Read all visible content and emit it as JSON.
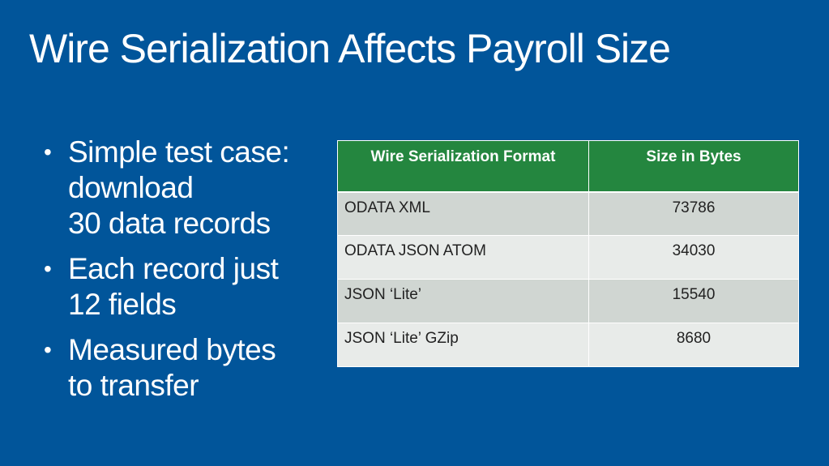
{
  "title": "Wire Serialization Affects Payroll Size",
  "bullets": [
    {
      "lines": [
        "Simple test case:",
        "download",
        "30 data records"
      ]
    },
    {
      "lines": [
        "Each record just",
        "12 fields"
      ]
    },
    {
      "lines": [
        "Measured bytes",
        "to transfer"
      ]
    }
  ],
  "table": {
    "headers": [
      "Wire Serialization Format",
      "Size in Bytes"
    ],
    "rows": [
      {
        "format": "ODATA XML",
        "size": "73786"
      },
      {
        "format": "ODATA JSON ATOM",
        "size": "34030"
      },
      {
        "format": "JSON ‘Lite’",
        "size": "15540"
      },
      {
        "format": "JSON ‘Lite’ GZip",
        "size": "8680"
      }
    ],
    "colors": {
      "header_bg": "#24863f",
      "row_odd_bg": "#d0d6d2",
      "row_even_bg": "#e8ebe9"
    }
  },
  "colors": {
    "background": "#01559a",
    "text": "#ffffff"
  }
}
